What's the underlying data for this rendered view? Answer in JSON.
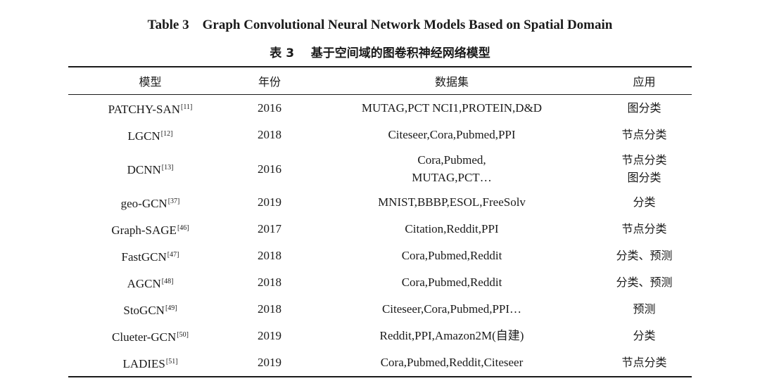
{
  "title_en": "Table 3    Graph Convolutional Neural Network Models Based on Spatial Domain",
  "title_zh": "表 3    基于空间域的图卷积神经网络模型",
  "headers": [
    "模型",
    "年份",
    "数据集",
    "应用"
  ],
  "rows": [
    {
      "model": "PATCHY-SAN",
      "ref": "[11]",
      "year": "2016",
      "datasets": [
        "MUTAG,PCT NCI1,PROTEIN,D&D"
      ],
      "applications": [
        "图分类"
      ]
    },
    {
      "model": "LGCN",
      "ref": "[12]",
      "year": "2018",
      "datasets": [
        "Citeseer,Cora,Pubmed,PPI"
      ],
      "applications": [
        "节点分类"
      ]
    },
    {
      "model": "DCNN",
      "ref": "[13]",
      "year": "2016",
      "datasets": [
        "Cora,Pubmed,",
        "MUTAG,PCT…"
      ],
      "applications": [
        "节点分类",
        "图分类"
      ]
    },
    {
      "model": "geo-GCN",
      "ref": "[37]",
      "year": "2019",
      "datasets": [
        "MNIST,BBBP,ESOL,FreeSolv"
      ],
      "applications": [
        "分类"
      ]
    },
    {
      "model": "Graph-SAGE",
      "ref": "[46]",
      "year": "2017",
      "datasets": [
        "Citation,Reddit,PPI"
      ],
      "applications": [
        "节点分类"
      ]
    },
    {
      "model": "FastGCN",
      "ref": "[47]",
      "year": "2018",
      "datasets": [
        "Cora,Pubmed,Reddit"
      ],
      "applications": [
        "分类、预测"
      ]
    },
    {
      "model": "AGCN",
      "ref": "[48]",
      "year": "2018",
      "datasets": [
        "Cora,Pubmed,Reddit"
      ],
      "applications": [
        "分类、预测"
      ]
    },
    {
      "model": "StoGCN",
      "ref": "[49]",
      "year": "2018",
      "datasets": [
        "Citeseer,Cora,Pubmed,PPI…"
      ],
      "applications": [
        "预测"
      ]
    },
    {
      "model": "Clueter-GCN",
      "ref": "[50]",
      "year": "2019",
      "datasets": [
        "Reddit,PPI,Amazon2M(自建)"
      ],
      "applications": [
        "分类"
      ]
    },
    {
      "model": "LADIES",
      "ref": "[51]",
      "year": "2019",
      "datasets": [
        "Cora,Pubmed,Reddit,Citeseer"
      ],
      "applications": [
        "节点分类"
      ]
    }
  ]
}
